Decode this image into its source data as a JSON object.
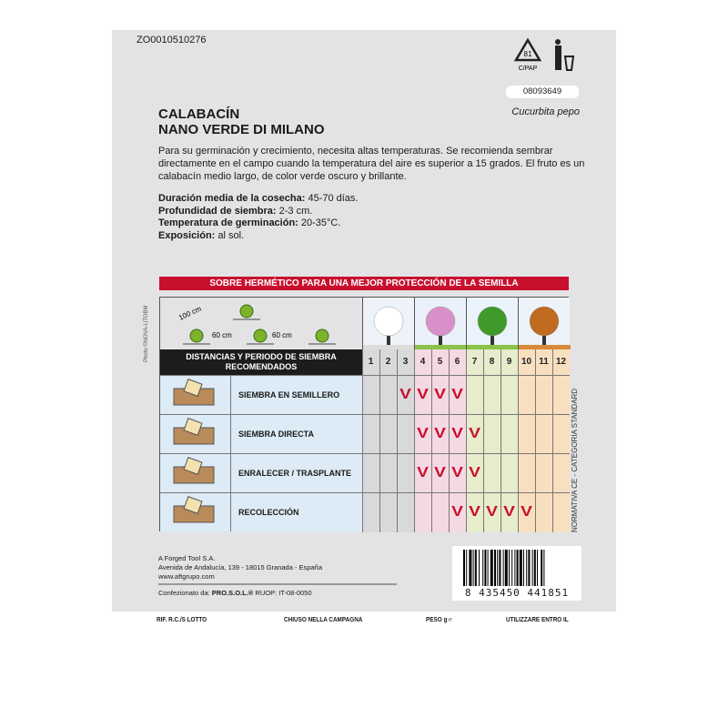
{
  "code": "ZO0010510276",
  "recycle": {
    "number": "81",
    "material": "C/PAP"
  },
  "lot_number": "08093649",
  "scientific_name": "Cucurbita pepo",
  "title": [
    "CALABACÍN",
    "NANO VERDE DI MILANO"
  ],
  "description": "Para su germinación y crecimiento, necesita altas temperaturas. Se recomienda sembrar directamente en el campo cuando la temperatura del aire es superior a 15 grados. El fruto es un calabacín medio largo, de color verde oscuro y brillante.",
  "facts": [
    {
      "label": "Duración media de la cosecha:",
      "value": " 45-70 días."
    },
    {
      "label": "Profundidad de siembra:",
      "value": " 2-3 cm."
    },
    {
      "label": "Temperatura de germinación:",
      "value": " 20-35°C."
    },
    {
      "label": "Exposición:",
      "value": " al sol."
    }
  ],
  "banner": "SOBRE HERMÉTICO PARA UNA MEJOR PROTECCIÓN DE LA SEMILLA",
  "photo_credit": "Photo ©NOVA-LITOBM",
  "spacing": {
    "row": "100 cm",
    "plant1": "60 cm",
    "plant2": "60 cm"
  },
  "table": {
    "header": "DISTANCIAS Y PERIODO DE SIEMBRA RECOMENDADOS",
    "months": [
      "1",
      "2",
      "3",
      "4",
      "5",
      "6",
      "7",
      "8",
      "9",
      "10",
      "11",
      "12"
    ],
    "season_colors": [
      "#d9d9db",
      "#f4d9e3",
      "#e6eccc",
      "#f7dfc0"
    ],
    "check_color": "#c8102e",
    "rows": [
      {
        "label": "SIEMBRA EN SEMILLERO",
        "icon": "seedbed-icon",
        "months": [
          3,
          4,
          5,
          6
        ]
      },
      {
        "label": "SIEMBRA DIRECTA",
        "icon": "direct-sowing-icon",
        "months": [
          4,
          5,
          6,
          7
        ]
      },
      {
        "label": "ENRALECER / TRASPLANTE",
        "icon": "transplant-icon",
        "months": [
          4,
          5,
          6,
          7
        ]
      },
      {
        "label": "RECOLECCIÓN",
        "icon": "harvest-basket-icon",
        "months": [
          6,
          7,
          8,
          9,
          10
        ]
      }
    ]
  },
  "normativa": "NORMATIVA CE - CATEGORIA STANDARD",
  "company": [
    "A Forged Tool S.A.",
    "Avenida de Andalucía, 139 - 18015 Granada - España",
    "www.aftgrupo.com"
  ],
  "packaged_by": {
    "label": "Confezionato da: ",
    "brand": "PRO.S.O.L.®",
    "ruop": " RUOP: IT-08-0050"
  },
  "barcode": "8 435450 441851",
  "footer": [
    "RIF. R.C./S LOTTO",
    "CHIUSO NELLA CAMPAGNA",
    "PESO g ℮",
    "UTILIZZARE ENTRO IL"
  ]
}
